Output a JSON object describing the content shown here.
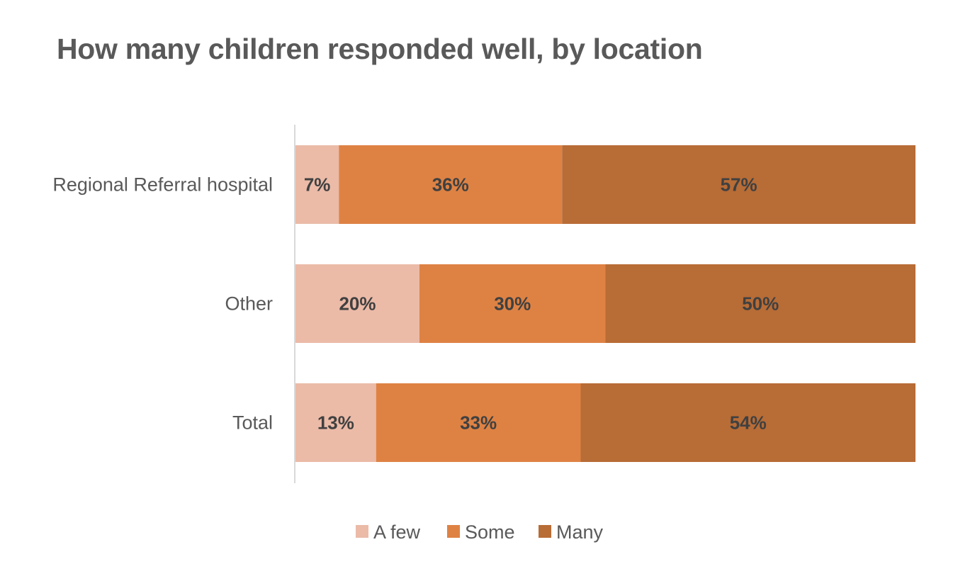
{
  "chart_data": {
    "type": "bar",
    "orientation": "horizontal",
    "stacked": true,
    "title": "How many children responded well, by location",
    "categories": [
      "Regional Referral hospital",
      "Other",
      "Total"
    ],
    "series": [
      {
        "name": "A few",
        "color": "#EBBBA8",
        "values": [
          7,
          20,
          13
        ],
        "labels": [
          "7%",
          "20%",
          "13%"
        ]
      },
      {
        "name": "Some",
        "color": "#DE8244",
        "values": [
          36,
          30,
          33
        ],
        "labels": [
          "36%",
          "30%",
          "33%"
        ]
      },
      {
        "name": "Many",
        "color": "#B86C36",
        "values": [
          57,
          50,
          54
        ],
        "labels": [
          "57%",
          "50%",
          "54%"
        ]
      }
    ],
    "xlim": [
      0,
      100
    ],
    "grid": false,
    "legend": "bottom"
  }
}
